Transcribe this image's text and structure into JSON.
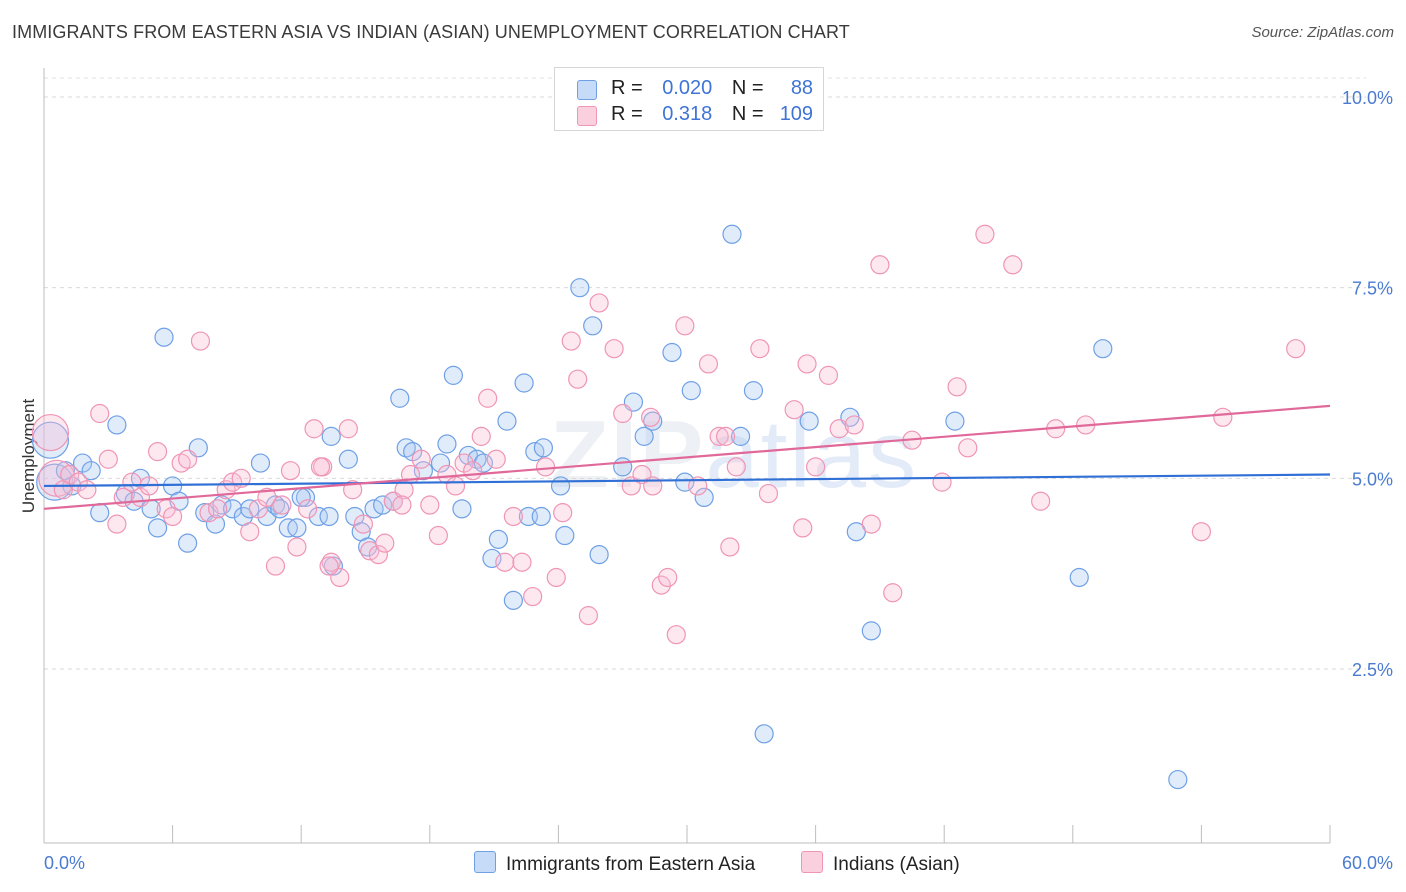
{
  "title": "IMMIGRANTS FROM EASTERN ASIA VS INDIAN (ASIAN) UNEMPLOYMENT CORRELATION CHART",
  "source": "Source: ZipAtlas.com",
  "watermark": {
    "bold": "ZIP",
    "light": "atlas"
  },
  "legend": {
    "rows": [
      {
        "r_label": "R =",
        "r_value": "0.020",
        "n_label": "N =",
        "n_value": "88",
        "color": "#6fa0e6"
      },
      {
        "r_label": "R =",
        "r_value": "0.318",
        "n_label": "N =",
        "n_value": "109",
        "color": "#ef95b5"
      }
    ]
  },
  "bottom_legend": [
    {
      "label": "Immigrants from Eastern Asia",
      "color": "#6fa0e6"
    },
    {
      "label": "Indians (Asian)",
      "color": "#ef95b5"
    }
  ],
  "chart_data": {
    "type": "scatter",
    "title": "IMMIGRANTS FROM EASTERN ASIA VS INDIAN (ASIAN) UNEMPLOYMENT CORRELATION CHART",
    "xlabel": "",
    "ylabel": "Unemployment",
    "xlim": [
      0,
      60
    ],
    "ylim": [
      0,
      10
    ],
    "x_tick_labels": [
      "0.0%",
      "60.0%"
    ],
    "y_ticks": [
      2.5,
      5.0,
      7.5,
      10.0
    ],
    "y_tick_labels": [
      "2.5%",
      "5.0%",
      "7.5%",
      "10.0%"
    ],
    "grid": "horizontal dashed",
    "series": [
      {
        "name": "Immigrants from Eastern Asia",
        "color": "#6fa0e6",
        "line_color": "#2f6fd6",
        "trend": {
          "x": [
            0,
            60
          ],
          "y": [
            4.9,
            5.05
          ]
        },
        "points": [
          [
            0.3,
            5.5
          ],
          [
            0.5,
            4.95
          ],
          [
            1.0,
            5.1
          ],
          [
            1.3,
            4.9
          ],
          [
            1.8,
            5.2
          ],
          [
            2.2,
            5.1
          ],
          [
            2.6,
            4.55
          ],
          [
            3.4,
            5.7
          ],
          [
            3.8,
            4.8
          ],
          [
            4.2,
            4.7
          ],
          [
            4.5,
            5.0
          ],
          [
            5.0,
            4.6
          ],
          [
            5.3,
            4.35
          ],
          [
            5.6,
            6.85
          ],
          [
            6.0,
            4.9
          ],
          [
            6.3,
            4.7
          ],
          [
            6.7,
            4.15
          ],
          [
            7.2,
            5.4
          ],
          [
            7.5,
            4.55
          ],
          [
            8.0,
            4.4
          ],
          [
            8.3,
            4.65
          ],
          [
            8.8,
            4.6
          ],
          [
            9.3,
            4.5
          ],
          [
            9.6,
            4.6
          ],
          [
            10.1,
            5.2
          ],
          [
            10.4,
            4.5
          ],
          [
            10.8,
            4.65
          ],
          [
            11.4,
            4.35
          ],
          [
            11.8,
            4.35
          ],
          [
            12.2,
            4.75
          ],
          [
            12.8,
            4.5
          ],
          [
            13.3,
            4.5
          ],
          [
            13.5,
            3.85
          ],
          [
            13.4,
            5.55
          ],
          [
            14.2,
            5.25
          ],
          [
            14.5,
            4.5
          ],
          [
            14.8,
            4.3
          ],
          [
            15.1,
            4.1
          ],
          [
            15.4,
            4.6
          ],
          [
            15.8,
            4.65
          ],
          [
            16.3,
            4.7
          ],
          [
            16.6,
            6.05
          ],
          [
            16.9,
            5.4
          ],
          [
            17.2,
            5.35
          ],
          [
            17.7,
            5.1
          ],
          [
            18.5,
            5.2
          ],
          [
            18.8,
            5.45
          ],
          [
            19.1,
            6.35
          ],
          [
            19.5,
            4.6
          ],
          [
            19.8,
            5.3
          ],
          [
            20.2,
            5.25
          ],
          [
            20.5,
            5.2
          ],
          [
            20.9,
            3.95
          ],
          [
            21.2,
            4.2
          ],
          [
            21.6,
            5.75
          ],
          [
            21.9,
            3.4
          ],
          [
            22.4,
            6.25
          ],
          [
            22.6,
            4.5
          ],
          [
            22.9,
            5.35
          ],
          [
            23.3,
            5.4
          ],
          [
            24.1,
            4.9
          ],
          [
            24.3,
            4.25
          ],
          [
            25.0,
            7.5
          ],
          [
            25.6,
            7.0
          ],
          [
            25.9,
            4.0
          ],
          [
            27.0,
            5.15
          ],
          [
            27.5,
            6.0
          ],
          [
            28.0,
            5.55
          ],
          [
            28.4,
            5.75
          ],
          [
            29.3,
            6.65
          ],
          [
            29.9,
            4.95
          ],
          [
            30.2,
            6.15
          ],
          [
            30.8,
            4.75
          ],
          [
            32.1,
            8.2
          ],
          [
            32.5,
            5.55
          ],
          [
            33.1,
            6.15
          ],
          [
            33.6,
            1.65
          ],
          [
            35.7,
            5.75
          ],
          [
            37.6,
            5.8
          ],
          [
            37.9,
            4.3
          ],
          [
            38.6,
            3.0
          ],
          [
            42.5,
            5.75
          ],
          [
            48.3,
            3.7
          ],
          [
            49.4,
            6.7
          ],
          [
            52.9,
            1.05
          ],
          [
            11.0,
            4.6
          ],
          [
            12.0,
            4.75
          ],
          [
            23.2,
            4.5
          ]
        ]
      },
      {
        "name": "Indians (Asian)",
        "color": "#ef95b5",
        "line_color": "#e0699a",
        "trend": {
          "x": [
            0,
            60
          ],
          "y": [
            4.6,
            5.95
          ]
        },
        "points": [
          [
            0.3,
            5.6
          ],
          [
            0.6,
            5.0
          ],
          [
            0.9,
            4.85
          ],
          [
            1.2,
            5.05
          ],
          [
            1.6,
            4.95
          ],
          [
            2.0,
            4.85
          ],
          [
            2.6,
            5.85
          ],
          [
            3.0,
            5.25
          ],
          [
            3.4,
            4.4
          ],
          [
            3.7,
            4.75
          ],
          [
            4.1,
            4.95
          ],
          [
            4.5,
            4.75
          ],
          [
            4.9,
            4.9
          ],
          [
            5.3,
            5.35
          ],
          [
            5.7,
            4.6
          ],
          [
            6.0,
            4.5
          ],
          [
            6.4,
            5.2
          ],
          [
            6.7,
            5.25
          ],
          [
            7.3,
            6.8
          ],
          [
            7.7,
            4.55
          ],
          [
            8.1,
            4.6
          ],
          [
            8.5,
            4.85
          ],
          [
            8.8,
            4.95
          ],
          [
            9.2,
            5.0
          ],
          [
            9.6,
            4.3
          ],
          [
            10.0,
            4.6
          ],
          [
            10.4,
            4.75
          ],
          [
            10.8,
            3.85
          ],
          [
            11.1,
            4.65
          ],
          [
            11.5,
            5.1
          ],
          [
            11.8,
            4.1
          ],
          [
            12.3,
            4.6
          ],
          [
            12.6,
            5.65
          ],
          [
            13.0,
            5.15
          ],
          [
            13.4,
            3.9
          ],
          [
            13.8,
            3.7
          ],
          [
            14.2,
            5.65
          ],
          [
            14.4,
            4.85
          ],
          [
            14.9,
            4.4
          ],
          [
            15.2,
            4.05
          ],
          [
            15.6,
            4.0
          ],
          [
            15.9,
            4.15
          ],
          [
            16.3,
            4.7
          ],
          [
            16.8,
            4.85
          ],
          [
            17.1,
            5.05
          ],
          [
            17.6,
            5.25
          ],
          [
            18.0,
            4.65
          ],
          [
            18.4,
            4.25
          ],
          [
            18.8,
            5.05
          ],
          [
            19.2,
            4.9
          ],
          [
            19.6,
            5.2
          ],
          [
            20.0,
            5.1
          ],
          [
            20.4,
            5.55
          ],
          [
            20.7,
            6.05
          ],
          [
            21.1,
            5.25
          ],
          [
            21.5,
            3.9
          ],
          [
            21.9,
            4.5
          ],
          [
            22.3,
            3.9
          ],
          [
            22.8,
            3.45
          ],
          [
            23.4,
            5.15
          ],
          [
            23.9,
            3.7
          ],
          [
            24.2,
            4.55
          ],
          [
            24.6,
            6.8
          ],
          [
            24.9,
            6.3
          ],
          [
            25.4,
            3.2
          ],
          [
            25.9,
            7.3
          ],
          [
            26.6,
            6.7
          ],
          [
            27.0,
            5.85
          ],
          [
            27.4,
            4.9
          ],
          [
            27.9,
            5.05
          ],
          [
            28.3,
            5.8
          ],
          [
            28.8,
            3.6
          ],
          [
            29.1,
            3.7
          ],
          [
            29.5,
            2.95
          ],
          [
            29.9,
            7.0
          ],
          [
            30.5,
            4.9
          ],
          [
            31.0,
            6.5
          ],
          [
            31.5,
            5.55
          ],
          [
            32.0,
            4.1
          ],
          [
            32.3,
            5.15
          ],
          [
            33.4,
            6.7
          ],
          [
            33.8,
            4.8
          ],
          [
            35.0,
            5.9
          ],
          [
            35.4,
            4.35
          ],
          [
            36.0,
            5.15
          ],
          [
            36.6,
            6.35
          ],
          [
            37.1,
            5.65
          ],
          [
            37.8,
            5.7
          ],
          [
            38.6,
            4.4
          ],
          [
            39.0,
            7.8
          ],
          [
            39.6,
            3.5
          ],
          [
            40.5,
            5.5
          ],
          [
            41.9,
            4.95
          ],
          [
            42.6,
            6.2
          ],
          [
            43.1,
            5.4
          ],
          [
            43.9,
            8.2
          ],
          [
            45.2,
            7.8
          ],
          [
            46.5,
            4.7
          ],
          [
            47.2,
            5.65
          ],
          [
            48.6,
            5.7
          ],
          [
            54.0,
            4.3
          ],
          [
            55.0,
            5.8
          ],
          [
            58.4,
            6.7
          ],
          [
            35.6,
            6.5
          ],
          [
            31.8,
            5.55
          ],
          [
            12.9,
            5.15
          ],
          [
            16.7,
            4.65
          ],
          [
            28.4,
            4.9
          ],
          [
            13.3,
            3.85
          ]
        ]
      }
    ]
  }
}
